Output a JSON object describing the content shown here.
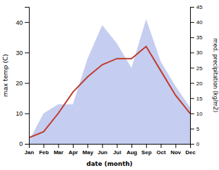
{
  "chart_data": {
    "type": "line",
    "categories": [
      "Jan",
      "Feb",
      "Mar",
      "Apr",
      "May",
      "Jun",
      "Jul",
      "Aug",
      "Sep",
      "Oct",
      "Nov",
      "Dec"
    ],
    "series": [
      {
        "type": "area",
        "color": "#c5cef0",
        "axis": "y2",
        "values": [
          1,
          10,
          13,
          13,
          28,
          39,
          33,
          25,
          41,
          27,
          19,
          12
        ]
      },
      {
        "type": "line",
        "color": "#c0392b",
        "values": [
          2,
          4,
          10,
          17,
          22,
          26,
          28,
          28,
          32,
          24,
          16,
          10
        ]
      }
    ],
    "ylim": [
      0,
      45
    ],
    "yticks": [
      0,
      10,
      20,
      30,
      40
    ],
    "y2lim": [
      0,
      45
    ],
    "y2ticks": [
      0,
      5,
      10,
      15,
      20,
      25,
      30,
      35,
      40,
      45
    ],
    "xlabel": "date (month)",
    "ylabel": "max temp (C)",
    "y2label": "med. precipitation (kg/m2)",
    "grid": false
  }
}
